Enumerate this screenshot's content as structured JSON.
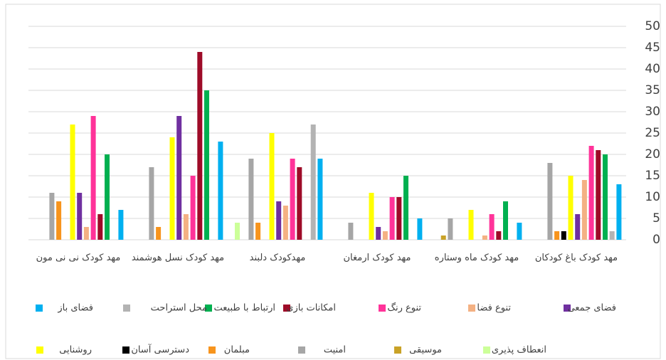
{
  "chart_data": {
    "type": "bar",
    "categories": [
      "مهد کودک نی نی مون",
      "مهد کودک نسل هوشمند",
      "مهدکودک دلبند",
      "مهد کودک ارمغان",
      "مهد کودک ماه وستاره",
      "مهد کودک باغ کودکان"
    ],
    "series": [
      {
        "name": "انعطاف پذیری",
        "color": "#ccff99",
        "values": [
          0,
          0,
          4,
          0,
          0,
          0
        ]
      },
      {
        "name": "موسیقی",
        "color": "#c9a227",
        "values": [
          0,
          0,
          0,
          0,
          1,
          0
        ]
      },
      {
        "name": "امنیت",
        "color": "#a6a6a6",
        "values": [
          11,
          17,
          19,
          4,
          5,
          18
        ]
      },
      {
        "name": "مبلمان",
        "color": "#f7941d",
        "values": [
          9,
          3,
          4,
          0,
          0,
          2
        ]
      },
      {
        "name": "دسترسی آسان",
        "color": "#000000",
        "values": [
          0,
          0,
          0,
          0,
          0,
          2
        ]
      },
      {
        "name": "روشنایی",
        "color": "#ffff00",
        "values": [
          27,
          24,
          25,
          11,
          7,
          15
        ]
      },
      {
        "name": "فضای جمعی",
        "color": "#7030a0",
        "values": [
          11,
          29,
          9,
          3,
          0,
          6
        ]
      },
      {
        "name": "تنوع فضا",
        "color": "#f4b183",
        "values": [
          3,
          6,
          8,
          2,
          1,
          14
        ]
      },
      {
        "name": "تنوع رنگ",
        "color": "#ff3399",
        "values": [
          29,
          15,
          19,
          10,
          6,
          22
        ]
      },
      {
        "name": "امکانات بازی",
        "color": "#9e0b28",
        "values": [
          6,
          44,
          17,
          10,
          2,
          21
        ]
      },
      {
        "name": "ارتباط با طبیعت",
        "color": "#00b050",
        "values": [
          20,
          35,
          0,
          15,
          9,
          20
        ]
      },
      {
        "name": "محل استراحت",
        "color": "#b3b3b3",
        "values": [
          0,
          0,
          27,
          0,
          0,
          2
        ]
      },
      {
        "name": "فضای باز",
        "color": "#00b0f0",
        "values": [
          7,
          23,
          19,
          5,
          4,
          13
        ]
      }
    ],
    "ylim": [
      0,
      50
    ],
    "yticks": [
      0,
      5,
      10,
      15,
      20,
      25,
      30,
      35,
      40,
      45,
      50
    ],
    "grid": true
  }
}
